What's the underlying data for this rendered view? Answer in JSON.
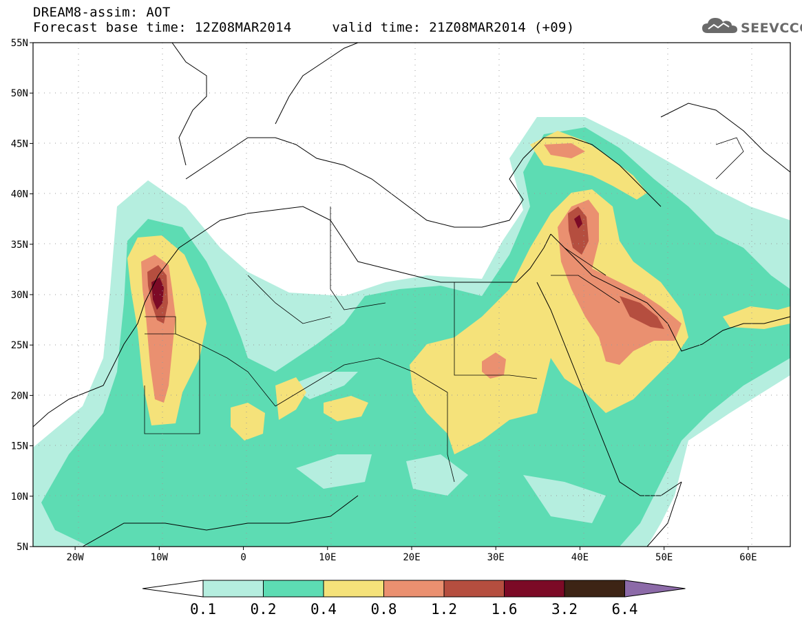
{
  "header": {
    "line1": "DREAM8-assim: AOT",
    "line2": "Forecast base time: 12Z08MAR2014     valid time: 21Z08MAR2014 (+09)",
    "logo_text": "SEEVCCC",
    "logo_icon": "cloud-icon"
  },
  "map": {
    "lon_range": [
      -25,
      65
    ],
    "lat_range": [
      5,
      55
    ],
    "lat_labels": [
      {
        "lat": 55,
        "text": "55N"
      },
      {
        "lat": 50,
        "text": "50N"
      },
      {
        "lat": 45,
        "text": "45N"
      },
      {
        "lat": 40,
        "text": "40N"
      },
      {
        "lat": 35,
        "text": "35N"
      },
      {
        "lat": 30,
        "text": "30N"
      },
      {
        "lat": 25,
        "text": "25N"
      },
      {
        "lat": 20,
        "text": "20N"
      },
      {
        "lat": 15,
        "text": "15N"
      },
      {
        "lat": 10,
        "text": "10N"
      },
      {
        "lat": 5,
        "text": "5N"
      }
    ],
    "lon_labels": [
      {
        "lon": -20,
        "text": "20W"
      },
      {
        "lon": -10,
        "text": "10W"
      },
      {
        "lon": 0,
        "text": "0"
      },
      {
        "lon": 10,
        "text": "10E"
      },
      {
        "lon": 20,
        "text": "20E"
      },
      {
        "lon": 30,
        "text": "30E"
      },
      {
        "lon": 40,
        "text": "40E"
      },
      {
        "lon": 50,
        "text": "50E"
      },
      {
        "lon": 60,
        "text": "60E"
      }
    ],
    "grid": "dotted"
  },
  "colorbar": {
    "colors": [
      "#ffffff",
      "#b5eedf",
      "#5ddcb3",
      "#f5e27a",
      "#ea9070",
      "#b54e3f",
      "#7c0a26",
      "#3d2415",
      "#8c6aa8"
    ],
    "labels": [
      "0.1",
      "0.2",
      "0.4",
      "0.8",
      "1.2",
      "1.6",
      "3.2",
      "6.4"
    ]
  }
}
